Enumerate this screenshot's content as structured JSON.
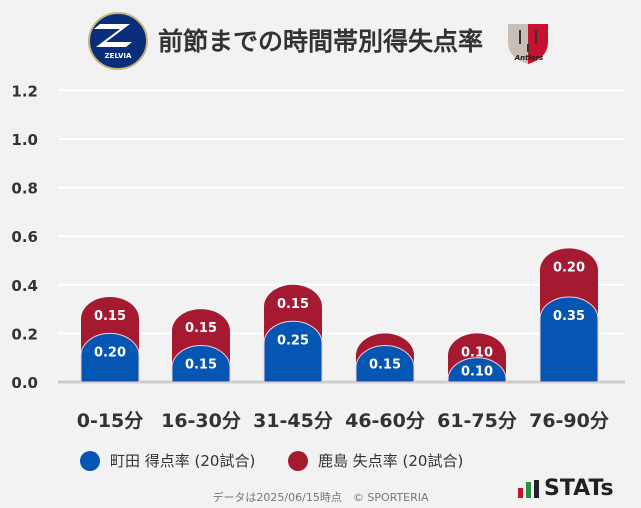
{
  "header": {
    "title": "前節までの時間帯別得失点率",
    "home_logo_text": "ZELVIA",
    "away_logo_text": "Antlers"
  },
  "chart_data": {
    "type": "bar",
    "stacked": true,
    "categories": [
      "0-15分",
      "16-30分",
      "31-45分",
      "46-60分",
      "61-75分",
      "76-90分"
    ],
    "series": [
      {
        "name": "町田 得点率 (20試合)",
        "color": "#0555b3",
        "values": [
          0.2,
          0.15,
          0.25,
          0.15,
          0.1,
          0.35
        ]
      },
      {
        "name": "鹿島 失点率 (20試合)",
        "color": "#a51a31",
        "values": [
          0.15,
          0.15,
          0.15,
          0.05,
          0.1,
          0.2
        ]
      }
    ],
    "data_labels": {
      "blue": [
        "0.20",
        "0.15",
        "0.25",
        "0.15",
        "0.10",
        "0.35"
      ],
      "red": [
        "0.15",
        "0.15",
        "0.15",
        "",
        "0.10",
        "0.20"
      ]
    },
    "yticks": [
      "0.0",
      "0.2",
      "0.4",
      "0.6",
      "0.8",
      "1.0",
      "1.2"
    ],
    "ylim": [
      0,
      1.2
    ],
    "grid": true,
    "legend": "bottom"
  },
  "footer": {
    "text": "データは2025/06/15時点　© SPORTERIA",
    "brand": "STATs"
  }
}
